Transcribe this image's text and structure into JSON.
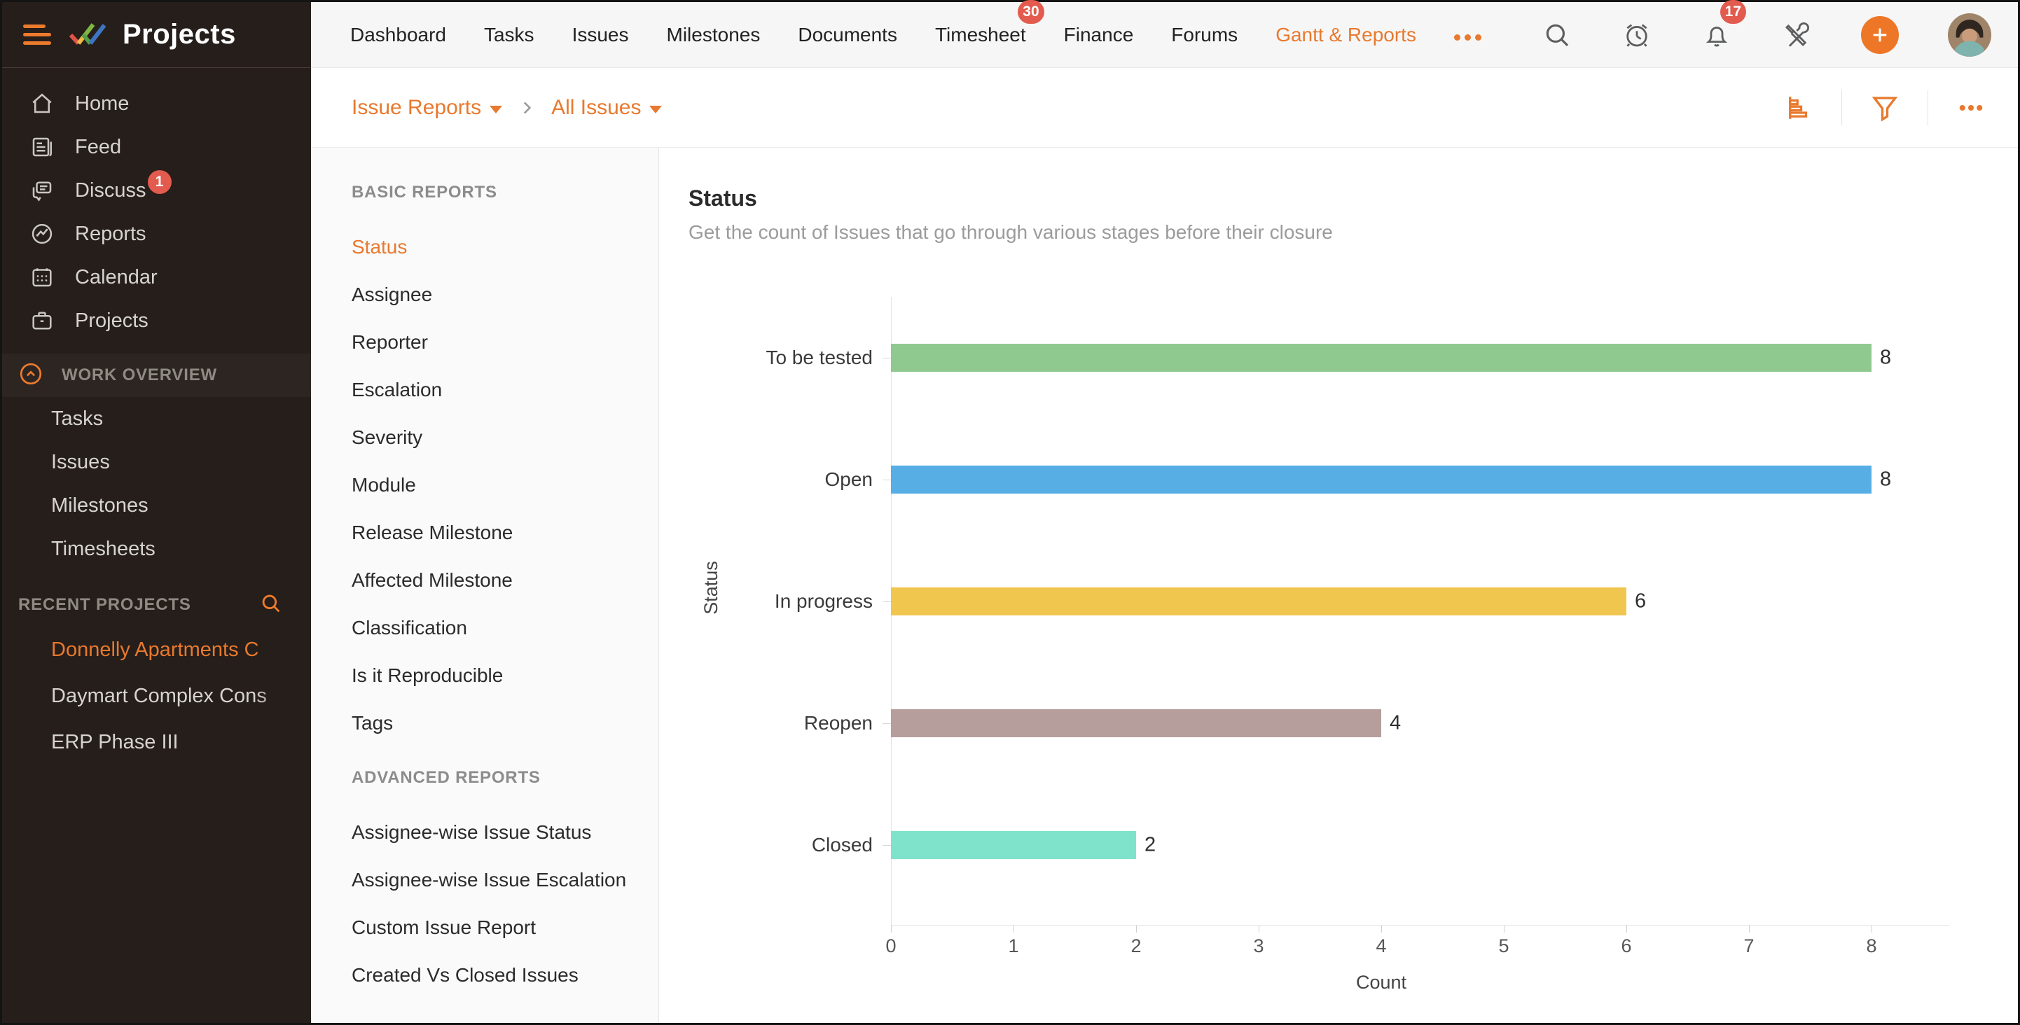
{
  "brand": {
    "app_name": "Projects"
  },
  "topnav": {
    "items": [
      {
        "label": "Dashboard"
      },
      {
        "label": "Tasks"
      },
      {
        "label": "Issues"
      },
      {
        "label": "Milestones"
      },
      {
        "label": "Documents"
      },
      {
        "label": "Timesheet",
        "badge": "30"
      },
      {
        "label": "Finance"
      },
      {
        "label": "Forums"
      },
      {
        "label": "Gantt & Reports",
        "active": true
      }
    ],
    "icons": [
      {
        "name": "search"
      },
      {
        "name": "timer"
      },
      {
        "name": "notifications",
        "badge": "17"
      },
      {
        "name": "tools"
      },
      {
        "name": "add"
      },
      {
        "name": "avatar"
      }
    ]
  },
  "sidebar": {
    "main_items": [
      {
        "label": "Home",
        "icon": "home"
      },
      {
        "label": "Feed",
        "icon": "feed"
      },
      {
        "label": "Discuss",
        "icon": "discuss",
        "badge": "1"
      },
      {
        "label": "Reports",
        "icon": "reports"
      },
      {
        "label": "Calendar",
        "icon": "calendar"
      },
      {
        "label": "Projects",
        "icon": "projects"
      }
    ],
    "work_overview": {
      "header": "WORK OVERVIEW",
      "items": [
        "Tasks",
        "Issues",
        "Milestones",
        "Timesheets"
      ]
    },
    "recent_projects": {
      "header": "RECENT PROJECTS",
      "items": [
        {
          "label": "Donnelly Apartments C",
          "active": true
        },
        {
          "label": "Daymart Complex Cons",
          "active": false
        },
        {
          "label": "ERP Phase III",
          "active": false
        }
      ]
    }
  },
  "breadcrumb": {
    "level1": "Issue Reports",
    "level2": "All Issues"
  },
  "toolbar_icons": [
    "bar-chart",
    "filter",
    "more"
  ],
  "reports_nav": {
    "basic": {
      "header": "BASIC REPORTS",
      "selected": "Status",
      "items": [
        "Status",
        "Assignee",
        "Reporter",
        "Escalation",
        "Severity",
        "Module",
        "Release Milestone",
        "Affected Milestone",
        "Classification",
        "Is it Reproducible",
        "Tags"
      ]
    },
    "advanced": {
      "header": "ADVANCED REPORTS",
      "items": [
        "Assignee-wise Issue Status",
        "Assignee-wise Issue Escalation",
        "Custom Issue Report",
        "Created Vs Closed Issues"
      ]
    }
  },
  "report": {
    "title": "Status",
    "subtitle": "Get the count of Issues that go through various stages before their closure"
  },
  "chart_data": {
    "type": "bar",
    "orientation": "horizontal",
    "title": "Status",
    "categories": [
      "To be tested",
      "Open",
      "In progress",
      "Reopen",
      "Closed"
    ],
    "values": [
      8,
      8,
      6,
      4,
      2
    ],
    "colors": [
      "#8fc98f",
      "#56aee5",
      "#f1c64f",
      "#b59e9b",
      "#7fe3cc"
    ],
    "xlabel": "Count",
    "ylabel": "Status",
    "xlim": [
      0,
      8
    ],
    "xticks": [
      0,
      1,
      2,
      3,
      4,
      5,
      6,
      7,
      8
    ],
    "grid": false,
    "legend": false
  },
  "accent_colors": {
    "primary_orange": "#e8792e",
    "alert_red": "#e25b4e"
  }
}
